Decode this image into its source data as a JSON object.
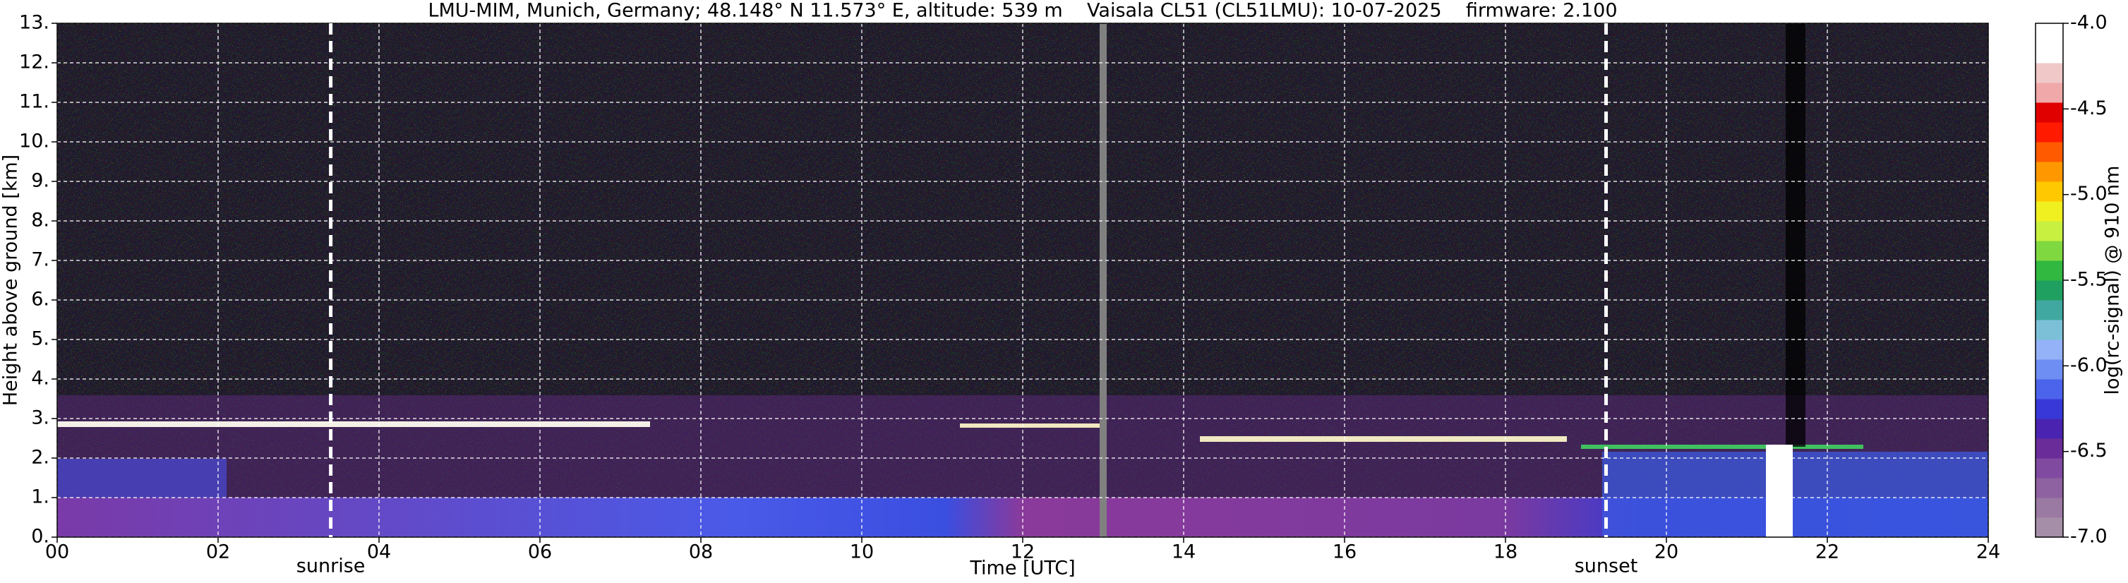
{
  "chart_data": {
    "type": "heatmap",
    "title": "LMU-MIM, Munich, Germany; 48.148° N 11.573° E, altitude: 539 m    Vaisala CL51 (CL51LMU): 10-07-2025    firmware: 2.100",
    "x_label": "Time [UTC]",
    "y_label": "Height above ground [km]",
    "xlim": [
      0,
      24
    ],
    "xticks": [
      {
        "value": 0,
        "label": "00"
      },
      {
        "value": 2,
        "label": "02"
      },
      {
        "value": 4,
        "label": "04"
      },
      {
        "value": 6,
        "label": "06"
      },
      {
        "value": 8,
        "label": "08"
      },
      10,
      12,
      14,
      16,
      18,
      20,
      22,
      24
    ],
    "ylim": [
      0,
      13
    ],
    "yticks": [
      {
        "value": 0,
        "label": "0."
      },
      {
        "value": 1,
        "label": "1."
      },
      {
        "value": 2,
        "label": "2."
      },
      {
        "value": 3,
        "label": "3."
      },
      {
        "value": 4,
        "label": "4."
      },
      {
        "value": 5,
        "label": "5."
      },
      {
        "value": 6,
        "label": "6."
      },
      {
        "value": 7,
        "label": "7."
      },
      {
        "value": 8,
        "label": "8."
      },
      {
        "value": 9,
        "label": "9."
      },
      {
        "value": 10,
        "label": "10."
      },
      {
        "value": 11,
        "label": "11."
      },
      {
        "value": 12,
        "label": "12."
      },
      {
        "value": 13,
        "label": "13."
      }
    ],
    "grid": true,
    "events": [
      {
        "label": "sunrise",
        "x": 3.4
      },
      {
        "label": "sunset",
        "x": 19.25
      }
    ],
    "colorbar": {
      "label": "log(rc-signal) @ 910 nm",
      "clim": [
        -7,
        -4
      ],
      "ticks": [
        {
          "value": -7,
          "label": "-7.0"
        },
        -6.5,
        {
          "value": -6,
          "label": "-6.0"
        },
        -5.5,
        {
          "value": -5,
          "label": "-5.0"
        },
        -4.5,
        {
          "value": -4,
          "label": "-4.0"
        }
      ],
      "colors": [
        "#a58ea8",
        "#9a7aa2",
        "#8e62a0",
        "#7f4aa0",
        "#6a2c98",
        "#4a24b0",
        "#3838d8",
        "#4c64ec",
        "#6e8ef4",
        "#94b2f8",
        "#7cc0d8",
        "#40a8a0",
        "#20a060",
        "#30b840",
        "#80d840",
        "#c8f040",
        "#f0f020",
        "#ffc800",
        "#ff9800",
        "#ff5a00",
        "#ff1a00",
        "#e00000",
        "#f0a8a8",
        "#f0c8c8",
        "#ffffff",
        "#ffffff"
      ]
    }
  }
}
